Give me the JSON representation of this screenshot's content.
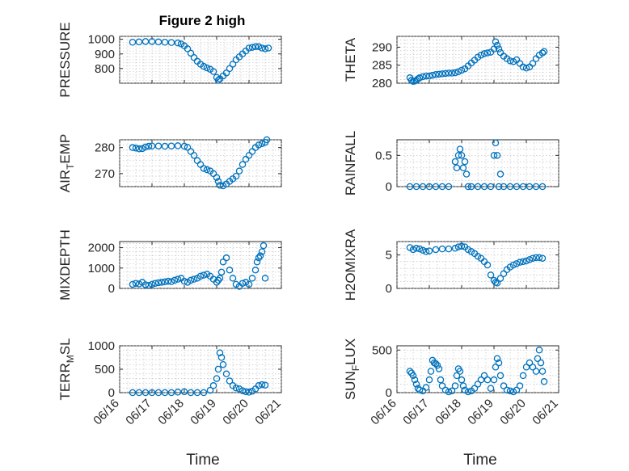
{
  "title": "Figure 2 high",
  "marker_color": "#0072BD",
  "x_tick_labels": [
    "06/16",
    "06/17",
    "06/18",
    "06/19",
    "06/20",
    "06/21"
  ],
  "chart_data": [
    {
      "type": "scatter",
      "ylabel": "PRESSURE",
      "ylabel_sub": "",
      "ylabel_tail": "",
      "xlim": [
        0,
        5
      ],
      "ylim": [
        700,
        1020
      ],
      "yticks": [
        800,
        900,
        1000
      ],
      "grid": true,
      "x": [
        0.4,
        0.6,
        0.8,
        1.0,
        1.2,
        1.4,
        1.6,
        1.8,
        1.9,
        2.0,
        2.1,
        2.2,
        2.3,
        2.4,
        2.5,
        2.6,
        2.7,
        2.8,
        2.9,
        3.0,
        3.05,
        3.1,
        3.2,
        3.3,
        3.4,
        3.5,
        3.6,
        3.7,
        3.8,
        3.9,
        4.0,
        4.1,
        4.2,
        4.3,
        4.4,
        4.5,
        4.6
      ],
      "y": [
        980,
        982,
        985,
        985,
        982,
        980,
        978,
        975,
        968,
        955,
        935,
        905,
        875,
        850,
        830,
        815,
        805,
        795,
        780,
        740,
        720,
        730,
        750,
        770,
        800,
        830,
        860,
        880,
        900,
        920,
        940,
        945,
        950,
        950,
        940,
        935,
        940
      ]
    },
    {
      "type": "scatter",
      "ylabel": "THETA",
      "ylabel_sub": "",
      "ylabel_tail": "",
      "xlim": [
        0,
        5
      ],
      "ylim": [
        280,
        293
      ],
      "yticks": [
        280,
        285,
        290
      ],
      "grid": true,
      "x": [
        0.4,
        0.45,
        0.5,
        0.55,
        0.6,
        0.65,
        0.7,
        0.8,
        0.9,
        1.0,
        1.1,
        1.2,
        1.3,
        1.4,
        1.5,
        1.6,
        1.7,
        1.8,
        1.9,
        2.0,
        2.1,
        2.2,
        2.3,
        2.4,
        2.5,
        2.6,
        2.7,
        2.8,
        2.9,
        3.0,
        3.05,
        3.1,
        3.15,
        3.2,
        3.3,
        3.4,
        3.5,
        3.6,
        3.7,
        3.8,
        3.9,
        4.0,
        4.1,
        4.2,
        4.3,
        4.4,
        4.5,
        4.55
      ],
      "y": [
        281.5,
        280.8,
        280.5,
        280.6,
        280.8,
        281.2,
        281.5,
        281.8,
        282,
        282,
        282.2,
        282.4,
        282.5,
        282.6,
        282.7,
        282.8,
        282.8,
        282.9,
        283.2,
        283.6,
        284,
        284.8,
        285.6,
        286.4,
        287.2,
        287.8,
        288.2,
        288.4,
        288.6,
        289.5,
        291.5,
        290.5,
        289.5,
        288.5,
        287.5,
        286.8,
        286.2,
        286,
        286.5,
        285.5,
        284.5,
        284.2,
        284.5,
        285.5,
        286.8,
        287.8,
        288.4,
        288.8
      ]
    },
    {
      "type": "scatter",
      "ylabel": "AIR",
      "ylabel_sub": "T",
      "ylabel_tail": "EMP",
      "xlim": [
        0,
        5
      ],
      "ylim": [
        265,
        283
      ],
      "yticks": [
        270,
        280
      ],
      "grid": true,
      "x": [
        0.4,
        0.5,
        0.6,
        0.7,
        0.8,
        0.9,
        1.0,
        1.2,
        1.4,
        1.6,
        1.8,
        2.0,
        2.1,
        2.2,
        2.3,
        2.4,
        2.5,
        2.6,
        2.7,
        2.8,
        2.9,
        3.0,
        3.05,
        3.1,
        3.2,
        3.3,
        3.4,
        3.5,
        3.6,
        3.7,
        3.8,
        3.9,
        4.0,
        4.1,
        4.2,
        4.3,
        4.4,
        4.5,
        4.55
      ],
      "y": [
        280,
        279.8,
        279.5,
        279.6,
        280.2,
        280.5,
        280.6,
        280.6,
        280.5,
        280.6,
        280.7,
        280.5,
        280.1,
        278.5,
        277,
        275,
        273.5,
        272,
        271.5,
        271,
        270,
        268.5,
        267,
        265.5,
        265.3,
        266,
        267,
        268,
        269,
        271,
        273.5,
        275.5,
        277,
        278.5,
        280,
        281,
        281.5,
        282,
        283
      ]
    },
    {
      "type": "scatter",
      "ylabel": "RAINFALL",
      "ylabel_sub": "",
      "ylabel_tail": "",
      "xlim": [
        0,
        5
      ],
      "ylim": [
        0,
        0.75
      ],
      "yticks": [
        0,
        0.5
      ],
      "grid": true,
      "x": [
        0.4,
        0.6,
        0.8,
        1.0,
        1.2,
        1.4,
        1.6,
        1.8,
        1.85,
        1.9,
        1.95,
        2.0,
        2.05,
        2.1,
        2.15,
        2.2,
        2.3,
        2.5,
        2.7,
        2.9,
        3.0,
        3.05,
        3.1,
        3.15,
        3.2,
        3.3,
        3.5,
        3.7,
        3.9,
        4.1,
        4.3,
        4.5
      ],
      "y": [
        0,
        0,
        0,
        0,
        0,
        0,
        0,
        0.4,
        0.3,
        0.5,
        0.6,
        0.5,
        0.3,
        0.4,
        0.2,
        0,
        0,
        0,
        0,
        0,
        0.5,
        0.7,
        0.5,
        0,
        0.2,
        0,
        0,
        0,
        0,
        0,
        0,
        0
      ]
    },
    {
      "type": "scatter",
      "ylabel": "MIXDEPTH",
      "ylabel_sub": "",
      "ylabel_tail": "",
      "xlim": [
        0,
        5
      ],
      "ylim": [
        0,
        2300
      ],
      "yticks": [
        0,
        1000,
        2000
      ],
      "grid": true,
      "x": [
        0.4,
        0.5,
        0.6,
        0.7,
        0.8,
        0.9,
        1.0,
        1.1,
        1.2,
        1.3,
        1.4,
        1.5,
        1.6,
        1.7,
        1.8,
        1.9,
        2.0,
        2.1,
        2.2,
        2.3,
        2.4,
        2.5,
        2.6,
        2.7,
        2.8,
        2.9,
        3.0,
        3.05,
        3.1,
        3.15,
        3.2,
        3.3,
        3.4,
        3.5,
        3.6,
        3.7,
        3.8,
        3.9,
        4.0,
        4.1,
        4.2,
        4.25,
        4.3,
        4.35,
        4.4,
        4.45,
        4.5
      ],
      "y": [
        200,
        250,
        220,
        300,
        180,
        150,
        200,
        250,
        280,
        300,
        320,
        350,
        330,
        400,
        450,
        500,
        350,
        300,
        400,
        450,
        500,
        600,
        650,
        700,
        600,
        450,
        300,
        400,
        500,
        800,
        1300,
        1500,
        900,
        500,
        200,
        100,
        250,
        300,
        200,
        500,
        900,
        1300,
        1500,
        1600,
        1800,
        2100,
        500
      ]
    },
    {
      "type": "scatter",
      "ylabel": "H2OMIXRA",
      "ylabel_sub": "",
      "ylabel_tail": "",
      "xlim": [
        0,
        5
      ],
      "ylim": [
        0,
        7
      ],
      "yticks": [
        0,
        5
      ],
      "grid": true,
      "x": [
        0.4,
        0.5,
        0.6,
        0.7,
        0.8,
        0.9,
        1.0,
        1.2,
        1.4,
        1.6,
        1.8,
        1.9,
        2.0,
        2.1,
        2.2,
        2.3,
        2.4,
        2.5,
        2.6,
        2.7,
        2.8,
        2.9,
        3.0,
        3.05,
        3.1,
        3.2,
        3.3,
        3.4,
        3.5,
        3.6,
        3.7,
        3.8,
        3.9,
        4.0,
        4.1,
        4.2,
        4.3,
        4.4,
        4.5
      ],
      "y": [
        6.1,
        5.8,
        6.0,
        5.9,
        5.7,
        5.5,
        5.6,
        5.8,
        5.9,
        5.9,
        6.0,
        6.2,
        6.3,
        6.2,
        5.8,
        5.5,
        5.2,
        4.8,
        4.5,
        4.0,
        3.5,
        2.0,
        1.2,
        0.9,
        0.8,
        1.5,
        2.2,
        2.8,
        3.2,
        3.5,
        3.7,
        3.9,
        4.0,
        4.1,
        4.3,
        4.5,
        4.6,
        4.6,
        4.5
      ]
    },
    {
      "type": "scatter",
      "ylabel": "TERR",
      "ylabel_sub": "M",
      "ylabel_tail": "SL",
      "xlim": [
        0,
        5
      ],
      "ylim": [
        0,
        1000
      ],
      "yticks": [
        0,
        500,
        1000
      ],
      "grid": true,
      "x": [
        0.4,
        0.6,
        0.8,
        1.0,
        1.2,
        1.4,
        1.6,
        1.8,
        2.0,
        2.2,
        2.4,
        2.6,
        2.8,
        2.9,
        3.0,
        3.05,
        3.1,
        3.15,
        3.2,
        3.3,
        3.4,
        3.5,
        3.6,
        3.7,
        3.8,
        3.9,
        4.0,
        4.1,
        4.2,
        4.3,
        4.4,
        4.5
      ],
      "y": [
        0,
        0,
        0,
        0,
        0,
        0,
        0,
        10,
        20,
        0,
        0,
        0,
        50,
        150,
        300,
        500,
        850,
        750,
        600,
        400,
        250,
        150,
        100,
        80,
        40,
        20,
        10,
        30,
        80,
        150,
        170,
        160
      ]
    },
    {
      "type": "scatter",
      "ylabel": "SUN",
      "ylabel_sub": "F",
      "ylabel_tail": "LUX",
      "xlim": [
        0,
        5
      ],
      "ylim": [
        0,
        550
      ],
      "yticks": [
        0,
        500
      ],
      "grid": true,
      "x": [
        0.4,
        0.45,
        0.5,
        0.55,
        0.6,
        0.65,
        0.7,
        0.8,
        0.9,
        1.0,
        1.05,
        1.1,
        1.15,
        1.2,
        1.25,
        1.3,
        1.35,
        1.4,
        1.5,
        1.6,
        1.7,
        1.8,
        1.85,
        1.9,
        1.95,
        2.0,
        2.05,
        2.1,
        2.2,
        2.3,
        2.4,
        2.5,
        2.6,
        2.7,
        2.8,
        2.9,
        3.0,
        3.05,
        3.1,
        3.15,
        3.2,
        3.3,
        3.4,
        3.5,
        3.6,
        3.7,
        3.8,
        3.9,
        4.0,
        4.1,
        4.2,
        4.3,
        4.35,
        4.4,
        4.45,
        4.5,
        4.55
      ],
      "y": [
        250,
        230,
        200,
        150,
        100,
        50,
        30,
        20,
        60,
        150,
        250,
        380,
        350,
        340,
        320,
        280,
        150,
        80,
        30,
        10,
        20,
        80,
        200,
        280,
        250,
        150,
        80,
        30,
        10,
        20,
        50,
        100,
        150,
        200,
        150,
        50,
        150,
        300,
        400,
        350,
        200,
        80,
        30,
        20,
        10,
        30,
        80,
        200,
        300,
        350,
        300,
        250,
        400,
        500,
        350,
        250,
        130
      ]
    }
  ],
  "xlabels": [
    "Time",
    "Time"
  ]
}
